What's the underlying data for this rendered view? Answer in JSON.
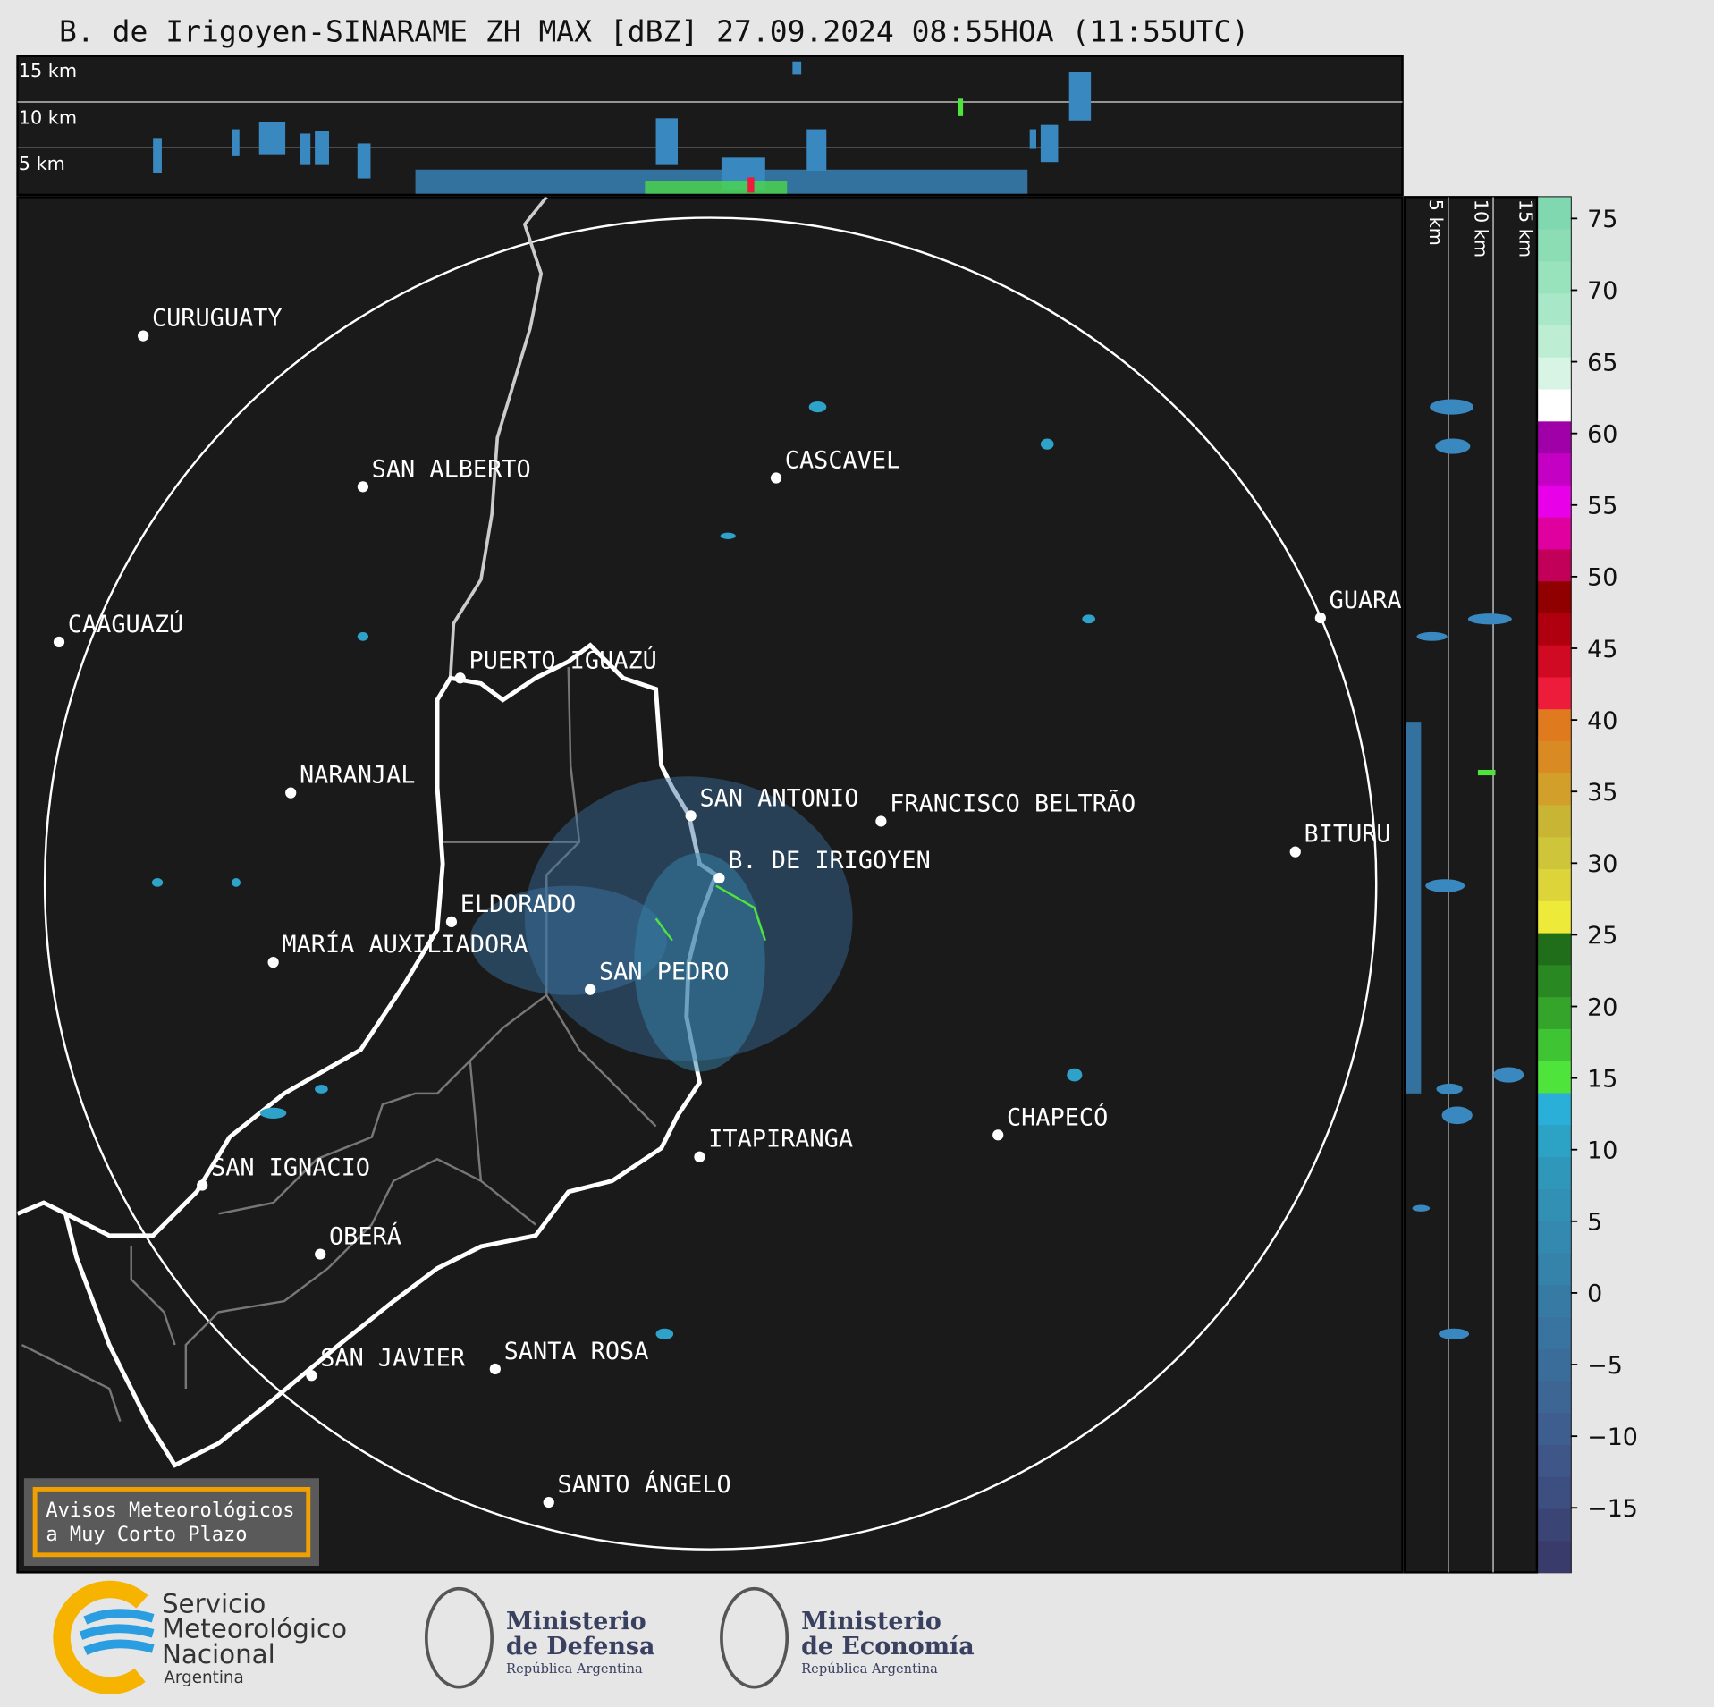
{
  "header": {
    "title": "B. de Irigoyen-SINARAME ZH MAX [dBZ] 27.09.2024 08:55HOA (11:55UTC)"
  },
  "top_panel": {
    "height_labels": [
      "15 km",
      "10 km",
      "5 km"
    ]
  },
  "side_panel": {
    "height_labels": [
      "5 km",
      "10 km",
      "15 km"
    ]
  },
  "map": {
    "cities": [
      "CURUGUATY",
      "SAN ALBERTO",
      "CASCAVEL",
      "CAAGUAZÚ",
      "PUERTO IGUAZÚ",
      "GUARA",
      "NARANJAL",
      "SAN ANTONIO",
      "FRANCISCO BELTRÃO",
      "BITURU",
      "B. DE IRIGOYEN",
      "ELDORADO",
      "MARÍA AUXILIADORA",
      "SAN PEDRO",
      "ITAPIRANGA",
      "CHAPECÓ",
      "SAN IGNACIO",
      "OBERÁ",
      "SAN JAVIER",
      "SANTA ROSA",
      "SANTO ÁNGELO"
    ],
    "notice": [
      "Avisos Meteorológicos",
      "a Muy Corto Plazo"
    ]
  },
  "colorbar": {
    "lim": [
      -19.5,
      76.5
    ],
    "ticks": [
      {
        "value": -15,
        "label": "−15"
      },
      {
        "value": -10,
        "label": "−10"
      },
      {
        "value": -5,
        "label": "−5"
      },
      0,
      5,
      10,
      15,
      20,
      25,
      30,
      35,
      40,
      45,
      50,
      55,
      60,
      65,
      70,
      75
    ],
    "colors": [
      "#393c6a",
      "#3b4575",
      "#3d4e80",
      "#3e5688",
      "#3e5e8f",
      "#3d6695",
      "#3b6d9a",
      "#3974a0",
      "#377ba5",
      "#3582aa",
      "#3389af",
      "#3190b4",
      "#2f98ba",
      "#2ca2c4",
      "#2ab0d8",
      "#4ee43c",
      "#3fc433",
      "#34a52a",
      "#2a8822",
      "#206d1a",
      "#eeea3a",
      "#ddd43a",
      "#cfc53a",
      "#c9b534",
      "#d2a02a",
      "#da8a22",
      "#e07a1e",
      "#ec1c3a",
      "#d00a22",
      "#b00010",
      "#900000",
      "#c2005a",
      "#e000a0",
      "#e800e8",
      "#c400c4",
      "#a000a8",
      "#ffffff",
      "#d8f4e4",
      "#bdeed4",
      "#a8e8c8",
      "#98e2bc",
      "#8cdcb4",
      "#80d8b0"
    ]
  },
  "footer": {
    "smn": [
      "Servicio",
      "Meteorológico",
      "Nacional",
      "Argentina"
    ],
    "defensa": [
      "Ministerio",
      "de Defensa",
      "República Argentina"
    ],
    "economia": [
      "Ministerio",
      "de Economía",
      "República Argentina"
    ]
  }
}
